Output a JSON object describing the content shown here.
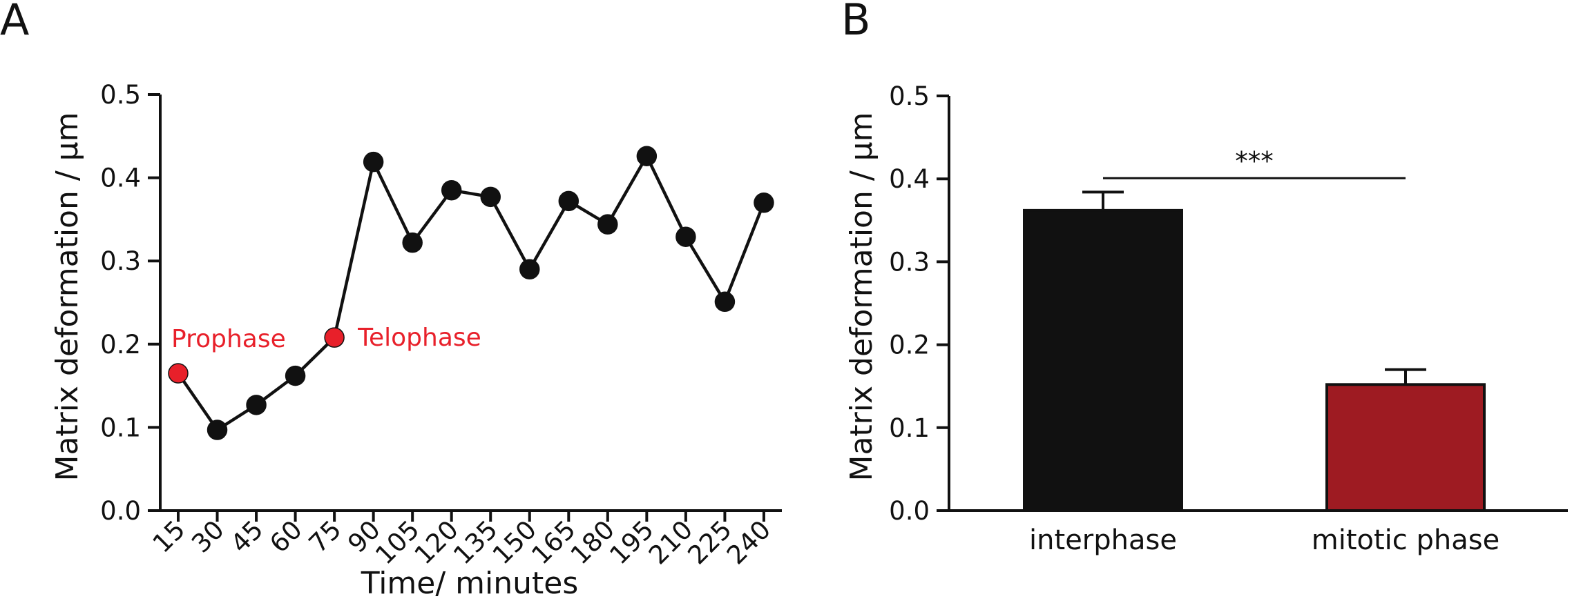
{
  "chart_data": [
    {
      "panel": "A",
      "type": "line",
      "xlabel": "Time/ minutes",
      "ylabel": "Matrix deformation /  µm",
      "ylim": [
        0,
        0.5
      ],
      "yticks": [
        "0.0",
        "0.1",
        "0.2",
        "0.3",
        "0.4",
        "0.5"
      ],
      "x": [
        "15",
        "30",
        "45",
        "60",
        "75",
        "90",
        "105",
        "120",
        "135",
        "150",
        "165",
        "180",
        "195",
        "210",
        "225",
        "240"
      ],
      "values": [
        0.165,
        0.097,
        0.127,
        0.162,
        0.208,
        0.419,
        0.322,
        0.385,
        0.377,
        0.29,
        0.372,
        0.344,
        0.426,
        0.329,
        0.251,
        0.37
      ],
      "point_colors": [
        "#e8202a",
        "#111111",
        "#111111",
        "#111111",
        "#e8202a",
        "#111111",
        "#111111",
        "#111111",
        "#111111",
        "#111111",
        "#111111",
        "#111111",
        "#111111",
        "#111111",
        "#111111",
        "#111111"
      ],
      "annotations": [
        {
          "text": "Prophase",
          "index": 0,
          "color": "#e8202a"
        },
        {
          "text": "Telophase",
          "index": 4,
          "color": "#e8202a"
        }
      ]
    },
    {
      "panel": "B",
      "type": "bar",
      "ylabel": "Matrix deformation /  µm",
      "ylim": [
        0,
        0.5
      ],
      "yticks": [
        "0.0",
        "0.1",
        "0.2",
        "0.3",
        "0.4",
        "0.5"
      ],
      "categories": [
        "interphase",
        "mitotic phase"
      ],
      "values": [
        0.362,
        0.152
      ],
      "errors": [
        0.022,
        0.018
      ],
      "colors": [
        "#111111",
        "#9e1b22"
      ],
      "significance": "***"
    }
  ]
}
